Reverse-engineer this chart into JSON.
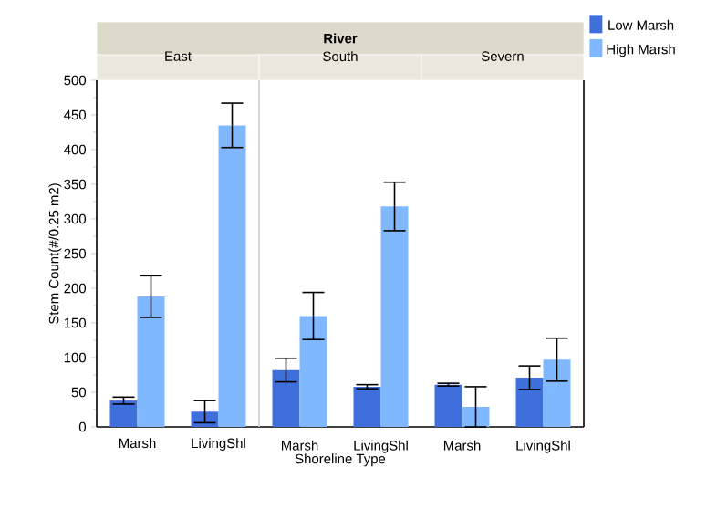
{
  "chart_data": [
    {
      "type": "bar",
      "title": "East",
      "annotations": [
        "River"
      ],
      "ylabel": "Stem Count(#/0.25 m2)",
      "categories": [
        "Marsh",
        "LivingShl"
      ],
      "series": [
        {
          "color": "#3f6fdb",
          "values": [
            38,
            22
          ],
          "errors": [
            5,
            16
          ]
        },
        {
          "color": "#80b8ff",
          "values": [
            188,
            435
          ],
          "errors": [
            30,
            32
          ]
        }
      ],
      "ylim": [
        0,
        500
      ],
      "yticks": [
        0,
        50,
        100,
        150,
        200,
        250,
        300,
        350,
        400,
        450,
        500
      ]
    },
    {
      "type": "bar",
      "title": "South",
      "xlabel": "Shoreline Type",
      "categories": [
        "Marsh",
        "LivingShl"
      ],
      "series": [
        {
          "color": "#3f6fdb",
          "values": [
            82,
            58
          ],
          "errors": [
            17,
            3
          ]
        },
        {
          "color": "#80b8ff",
          "values": [
            160,
            318
          ],
          "errors": [
            34,
            35
          ]
        }
      ],
      "ylim": [
        0,
        500
      ],
      "yticks": [
        0,
        50,
        100,
        150,
        200,
        250,
        300,
        350,
        400,
        450,
        500
      ],
      "tick_labels": "x"
    },
    {
      "type": "bar",
      "title": "Severn",
      "categories": [
        "Marsh",
        "LivingShl"
      ],
      "series": [
        {
          "name": "Low Marsh",
          "color": "#3f6fdb",
          "values": [
            61,
            71
          ],
          "errors": [
            2,
            17
          ]
        },
        {
          "name": "High Marsh",
          "color": "#80b8ff",
          "values": [
            29,
            97
          ],
          "errors": [
            29,
            31
          ]
        }
      ],
      "ylim": [
        0,
        500
      ],
      "yticks": [
        0,
        50,
        100,
        150,
        200,
        250,
        300,
        350,
        400,
        450,
        500
      ],
      "tick_labels": "x",
      "legend": "top right"
    }
  ]
}
